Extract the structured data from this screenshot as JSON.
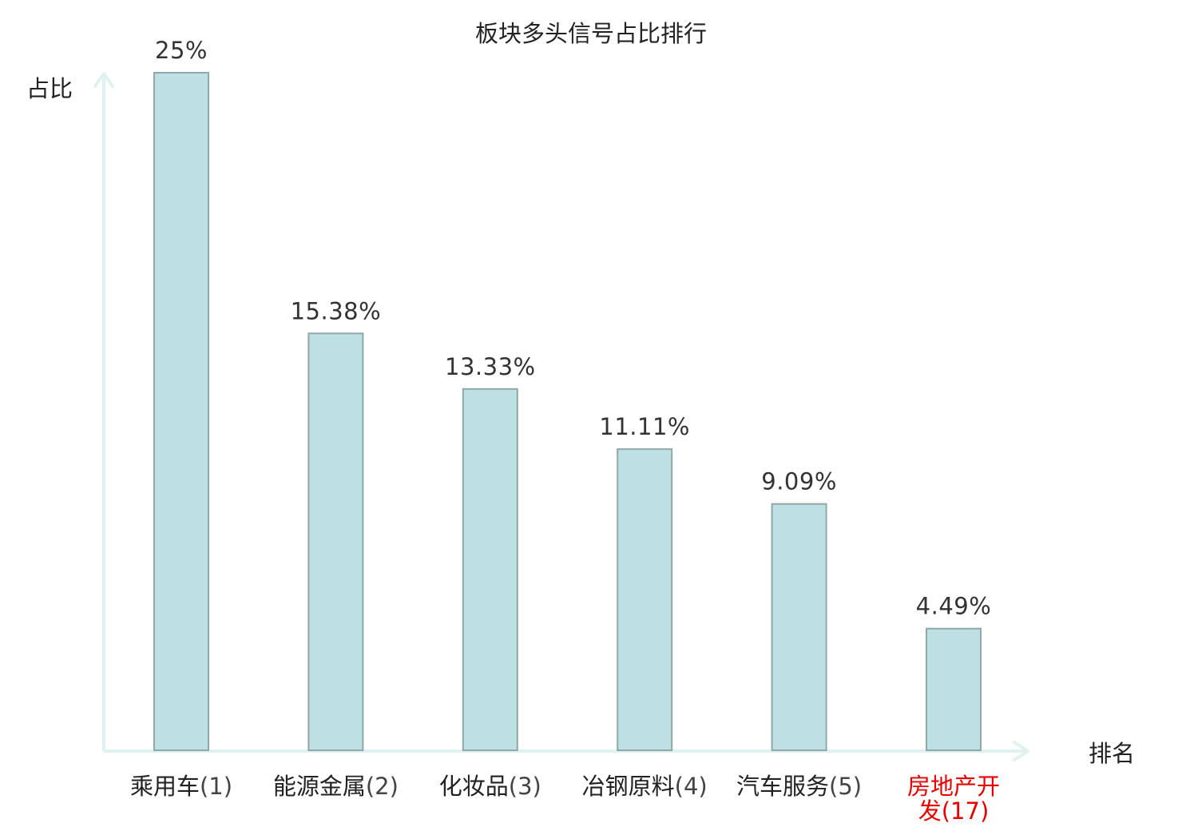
{
  "chart_data": {
    "type": "bar",
    "title": "板块多头信号占比排行",
    "ylabel": "占比",
    "xlabel": "排名",
    "categories": [
      {
        "name": "乘用车",
        "rank": "(1)"
      },
      {
        "name": "能源金属",
        "rank": "(2)"
      },
      {
        "name": "化妆品",
        "rank": "(3)"
      },
      {
        "name": "冶钢原料",
        "rank": "(4)"
      },
      {
        "name": "汽车服务",
        "rank": "(5)"
      },
      {
        "name": "房地产开发",
        "rank": "(17)"
      }
    ],
    "values": [
      25,
      15.38,
      13.33,
      11.11,
      9.09,
      4.49
    ],
    "value_labels": [
      "25%",
      "15.38%",
      "13.33%",
      "11.11%",
      "9.09%",
      "4.49%"
    ],
    "ylim": [
      0,
      25
    ],
    "grid": false,
    "highlight_index": 5,
    "colors": {
      "bar_fill": "#bde0e2",
      "bar_stroke": "#8fa8aa",
      "axis": "#e0f2ef",
      "text": "#222222",
      "value_text": "#333333",
      "highlight_text": "#e60000"
    }
  }
}
